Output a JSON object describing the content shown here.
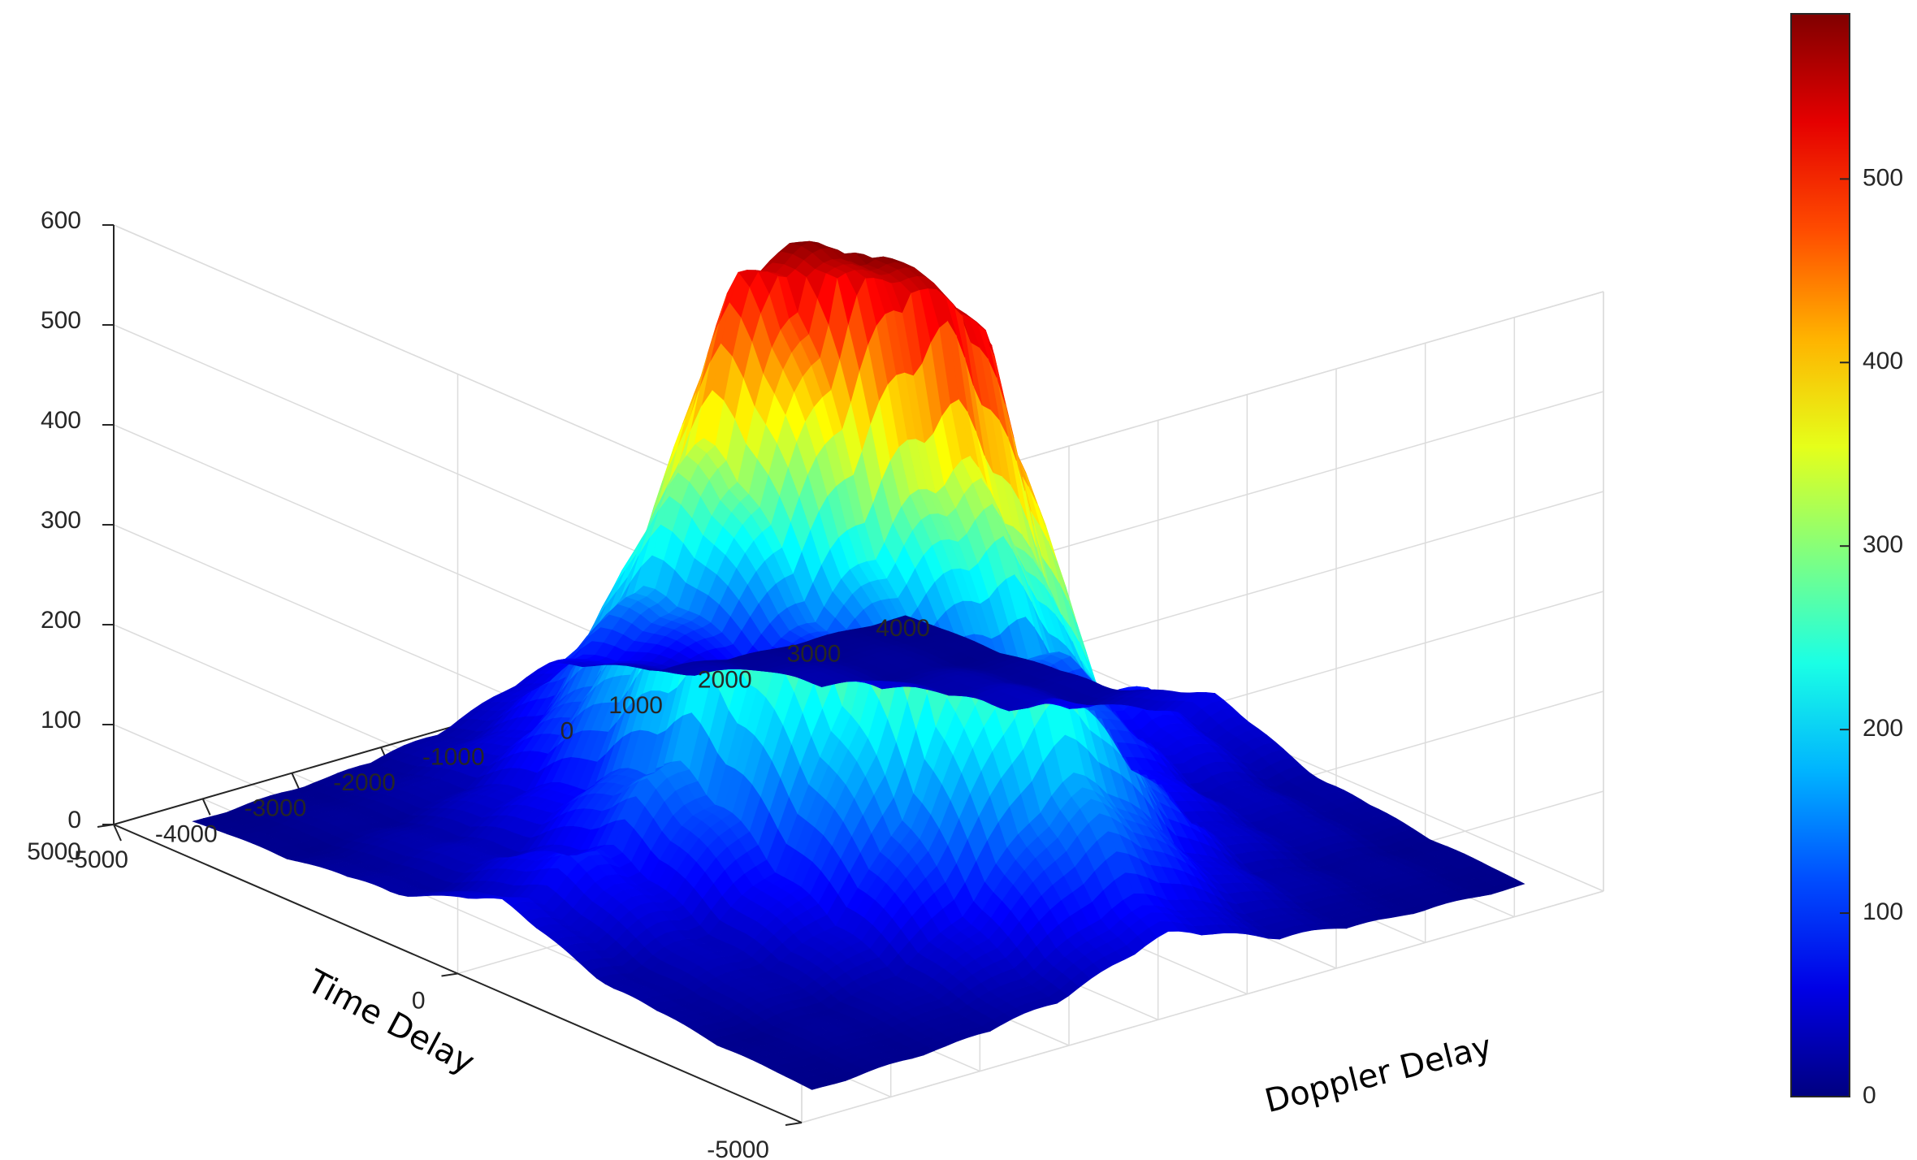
{
  "chart_data": {
    "type": "surface",
    "title": "",
    "xlabel": "Doppler Delay",
    "ylabel": "Time Delay",
    "zlabel": "",
    "xlim": [
      -5000,
      4000
    ],
    "ylim": [
      -5000,
      5000
    ],
    "zlim": [
      0,
      600
    ],
    "grid": true,
    "colormap": "jet",
    "x_ticks": [
      "-5000",
      "-4000",
      "-3000",
      "-2000",
      "-1000",
      "0",
      "1000",
      "2000",
      "3000",
      "4000"
    ],
    "y_ticks": [
      "-5000",
      "0",
      "5000"
    ],
    "z_ticks": [
      "0",
      "100",
      "200",
      "300",
      "400",
      "500",
      "600"
    ],
    "colorbar": {
      "range": [
        0,
        590
      ],
      "ticks": [
        "0",
        "100",
        "200",
        "300",
        "400",
        "500"
      ]
    },
    "surface": {
      "x_range": [
        -4500,
        3500
      ],
      "y_range": [
        -4500,
        4500
      ],
      "peak": {
        "x": -500,
        "y": 0,
        "z": 590
      },
      "peak_plateau_min": 530,
      "clip_level": 520,
      "ridge_along_y_decay": 1800,
      "ridge_along_x_decay": 1200,
      "sidelobe_period_y": 900,
      "sidelobe_period_x": 800
    }
  }
}
